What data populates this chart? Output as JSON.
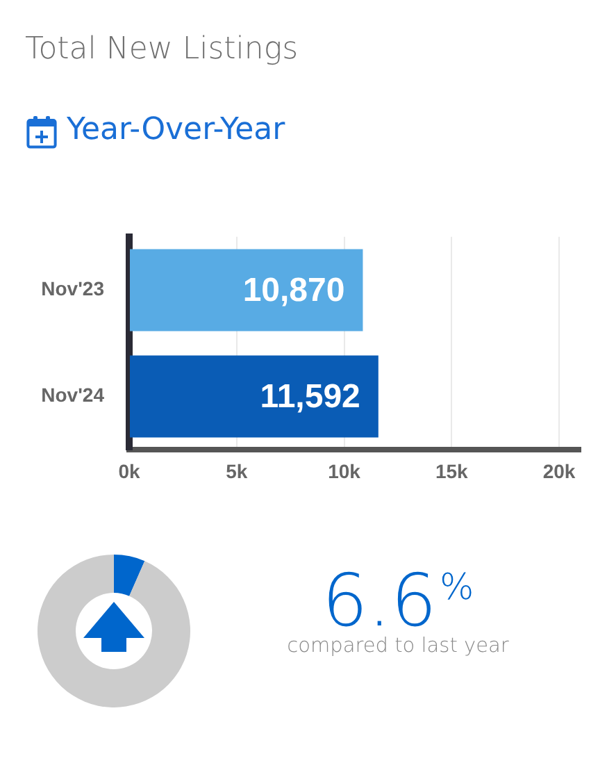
{
  "chart_data": [
    {
      "type": "bar",
      "title": "Total New Listings",
      "subtitle": "Year-Over-Year",
      "orientation": "horizontal",
      "categories": [
        "Nov'23",
        "Nov'24"
      ],
      "values": [
        10870,
        11592
      ],
      "colors": [
        "#58abe4",
        "#0a5cb5"
      ],
      "value_labels": [
        "10,870",
        "11,592"
      ],
      "xlim": [
        0,
        21000
      ],
      "xticks": [
        {
          "value": 0,
          "label": "0k"
        },
        {
          "value": 5000,
          "label": "5k"
        },
        {
          "value": 10000,
          "label": "10k"
        },
        {
          "value": 15000,
          "label": "15k"
        },
        {
          "value": 20000,
          "label": "20k"
        }
      ],
      "grid": "x"
    },
    {
      "type": "donut",
      "categories": [
        null,
        null
      ],
      "values": [
        6.6,
        93.4
      ],
      "colors": [
        "#0066cc",
        "#cccccc"
      ],
      "annotations": [
        "6.6$^{%}$",
        "compared to last year"
      ]
    }
  ]
}
